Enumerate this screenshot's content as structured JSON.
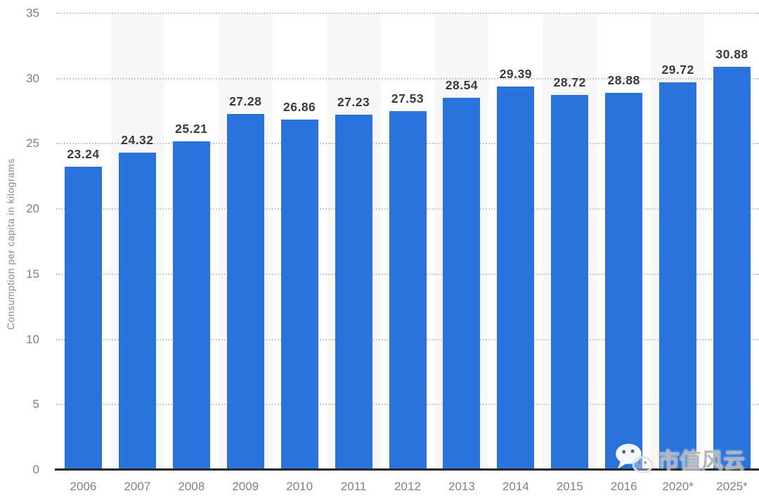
{
  "chart_data": {
    "type": "bar",
    "categories": [
      "2006",
      "2007",
      "2008",
      "2009",
      "2010",
      "2011",
      "2012",
      "2013",
      "2014",
      "2015",
      "2016",
      "2020*",
      "2025*"
    ],
    "values": [
      23.24,
      24.32,
      25.21,
      27.28,
      26.86,
      27.23,
      27.53,
      28.54,
      29.39,
      28.72,
      28.88,
      29.72,
      30.88
    ],
    "value_labels": [
      "23.24",
      "24.32",
      "25.21",
      "27.28",
      "26.86",
      "27.23",
      "27.53",
      "28.54",
      "29.39",
      "28.72",
      "28.88",
      "29.72",
      "30.88"
    ],
    "title": "",
    "xlabel": "",
    "ylabel": "Consumption per capita in kilograms",
    "ylim": [
      0,
      35
    ],
    "ytick_step": 5,
    "ytick_labels": [
      "0",
      "5",
      "10",
      "15",
      "20",
      "25",
      "30",
      "35"
    ],
    "grid": "horizontal-dotted",
    "legend": "none",
    "colors": {
      "bar": "#2b73dc",
      "band": "#f8f8f8",
      "gridline": "#c9c9c9",
      "axis_line": "#262626",
      "value_label": "#3a3a3a",
      "tick_label": "#818181",
      "background": "#ffffff"
    }
  },
  "watermark": {
    "icon": "wechat-icon",
    "text": "市值风云"
  }
}
